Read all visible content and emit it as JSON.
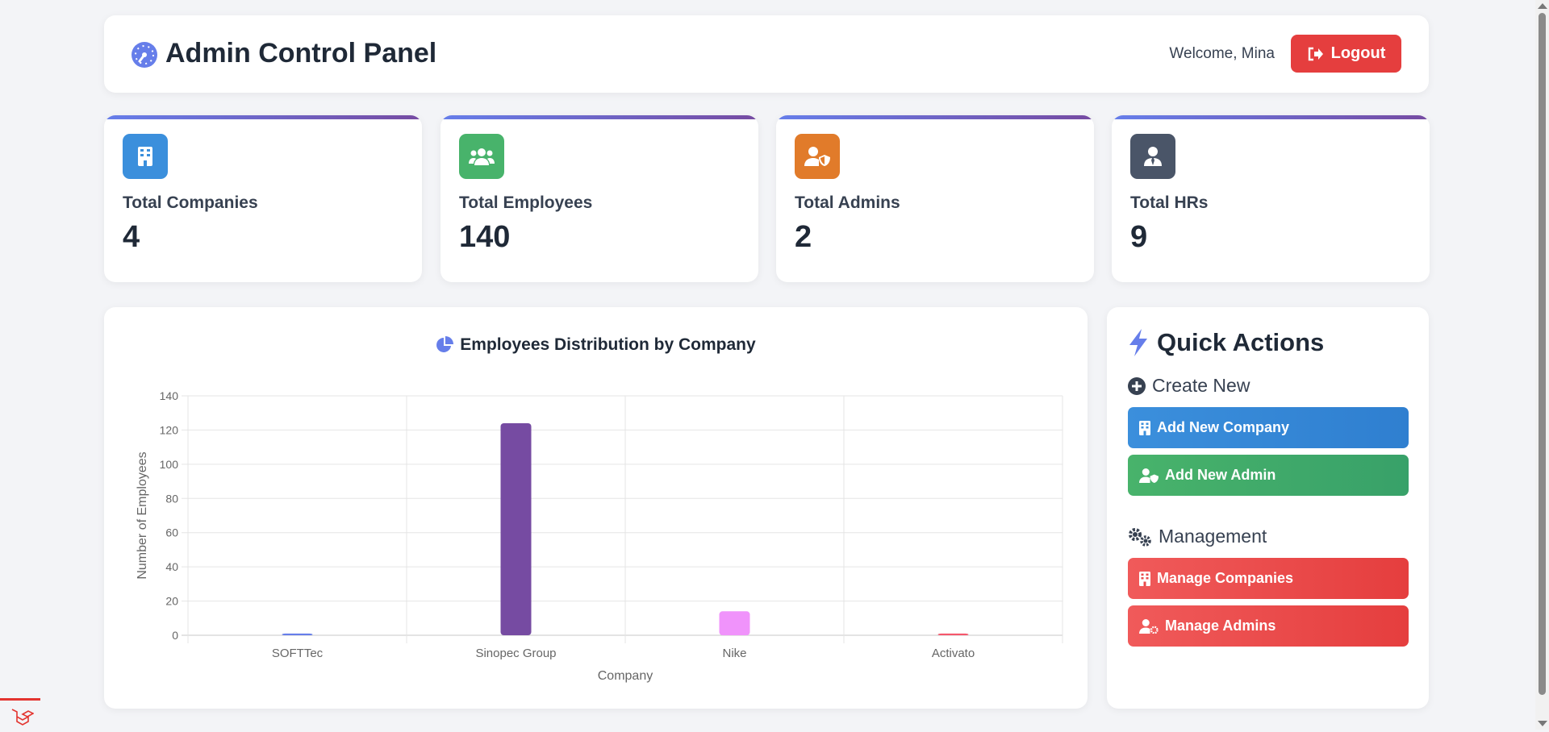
{
  "header": {
    "title": "Admin Control Panel",
    "welcome": "Welcome, Mina",
    "logout_label": "Logout"
  },
  "stats": [
    {
      "label": "Total Companies",
      "value": "4",
      "color": "#3182ce",
      "icon": "building-icon"
    },
    {
      "label": "Total Employees",
      "value": "140",
      "color": "#38a169",
      "icon": "users-icon"
    },
    {
      "label": "Total Admins",
      "value": "2",
      "color": "#dd6b20",
      "icon": "user-shield-icon"
    },
    {
      "label": "Total HRs",
      "value": "9",
      "color": "#4a5568",
      "icon": "user-tie-icon"
    }
  ],
  "chart": {
    "title": "Employees Distribution by Company"
  },
  "chart_data": {
    "type": "bar",
    "categories": [
      "SOFTTec",
      "Sinopec Group",
      "Nike",
      "Activato"
    ],
    "values": [
      1,
      124,
      14,
      1
    ],
    "colors": [
      "#667eea",
      "#764ba2",
      "#f093fb",
      "#f5576c"
    ],
    "xlabel": "Company",
    "ylabel": "Number of Employees",
    "ylim": [
      0,
      140
    ],
    "yticks": [
      0,
      20,
      40,
      60,
      80,
      100,
      120,
      140
    ],
    "grid": true
  },
  "quick_actions": {
    "title": "Quick Actions",
    "create_heading": "Create New",
    "add_company": "Add New Company",
    "add_admin": "Add New Admin",
    "management_heading": "Management",
    "manage_companies": "Manage Companies",
    "manage_admins": "Manage Admins"
  }
}
